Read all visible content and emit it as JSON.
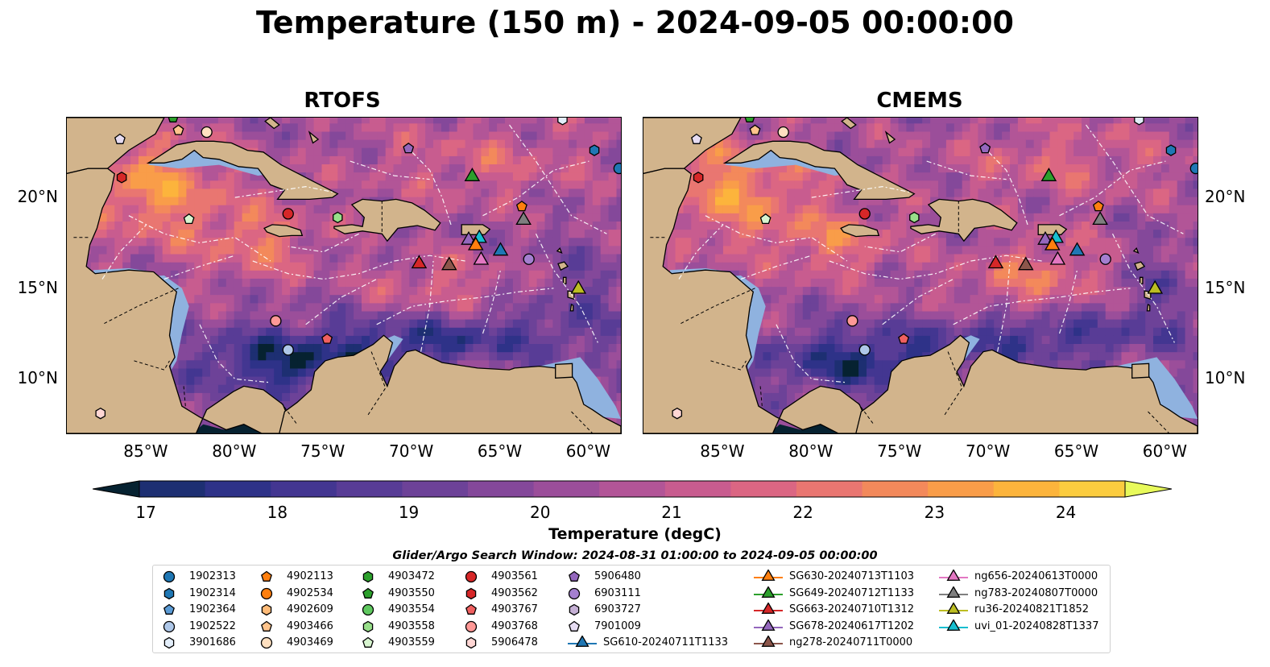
{
  "title": "Temperature (150 m) - 2024-09-05 00:00:00",
  "panels": [
    {
      "title": "RTOFS",
      "variant": 0
    },
    {
      "title": "CMEMS",
      "variant": 1
    }
  ],
  "lat_labels": [
    "20°N",
    "15°N",
    "10°N"
  ],
  "lat_values": [
    20,
    15,
    10
  ],
  "lon_labels": [
    "85°W",
    "80°W",
    "75°W",
    "70°W",
    "65°W",
    "60°W"
  ],
  "lon_values": [
    -85,
    -80,
    -75,
    -70,
    -65,
    -60
  ],
  "map_extent": {
    "lon": [
      -89.5,
      -58.2
    ],
    "lat": [
      7.0,
      24.4
    ]
  },
  "colorbar": {
    "label": "Temperature (degC)",
    "ticks": [
      "17",
      "18",
      "19",
      "20",
      "21",
      "22",
      "23",
      "24"
    ],
    "range": [
      16.9,
      24.55
    ],
    "colors": [
      "#062231",
      "#0e2b52",
      "#1d2f72",
      "#2e3288",
      "#433691",
      "#583c96",
      "#6d4298",
      "#84489a",
      "#9b4e9a",
      "#b25597",
      "#c85c8f",
      "#db6683",
      "#e97671",
      "#f3895b",
      "#f99d49",
      "#fcb43c",
      "#fbcc3f",
      "#f4e251",
      "#e8fa5b"
    ],
    "bounds": [
      17.5,
      18.0,
      18.5,
      19.0,
      19.5,
      20.0,
      20.5,
      21.0,
      21.5,
      22.0,
      22.5,
      23.0,
      23.5,
      24.0,
      24.5
    ],
    "extend": "both"
  },
  "search_window": "Glider/Argo Search Window: 2024-08-31 01:00:00 to 2024-09-05 00:00:00",
  "land_color": "#d2b48c",
  "shelf_color": "#8fb2df",
  "argo": [
    {
      "id": "1902313",
      "marker": "circle",
      "color": "#1f77b4"
    },
    {
      "id": "1902314",
      "marker": "hexagon",
      "color": "#1f77b4"
    },
    {
      "id": "1902364",
      "marker": "pentagon",
      "color": "#5b9bd5"
    },
    {
      "id": "1902522",
      "marker": "circle",
      "color": "#aec7e8"
    },
    {
      "id": "3901686",
      "marker": "hexagon",
      "color": "#e3eefa"
    },
    {
      "id": "4902113",
      "marker": "pentagon",
      "color": "#ff7f0e"
    },
    {
      "id": "4902534",
      "marker": "circle",
      "color": "#ff7f0e"
    },
    {
      "id": "4902609",
      "marker": "hexagon",
      "color": "#ffbb78"
    },
    {
      "id": "4903466",
      "marker": "pentagon",
      "color": "#ffc48c"
    },
    {
      "id": "4903469",
      "marker": "circle",
      "color": "#ffe0c0"
    },
    {
      "id": "4903472",
      "marker": "hexagon",
      "color": "#2ca02c"
    },
    {
      "id": "4903550",
      "marker": "pentagon",
      "color": "#2ca02c"
    },
    {
      "id": "4903554",
      "marker": "circle",
      "color": "#5fc85f"
    },
    {
      "id": "4903558",
      "marker": "hexagon",
      "color": "#98df8a"
    },
    {
      "id": "4903559",
      "marker": "pentagon",
      "color": "#d8f5d0"
    },
    {
      "id": "4903561",
      "marker": "circle",
      "color": "#d62728"
    },
    {
      "id": "4903562",
      "marker": "hexagon",
      "color": "#d62728"
    },
    {
      "id": "4903767",
      "marker": "pentagon",
      "color": "#f06060"
    },
    {
      "id": "4903768",
      "marker": "circle",
      "color": "#ff9896"
    },
    {
      "id": "5906478",
      "marker": "hexagon",
      "color": "#ffd6d4"
    },
    {
      "id": "5906480",
      "marker": "pentagon",
      "color": "#9467bd"
    },
    {
      "id": "6903111",
      "marker": "circle",
      "color": "#a47fd0"
    },
    {
      "id": "6903727",
      "marker": "hexagon",
      "color": "#c5b0d5"
    },
    {
      "id": "7901009",
      "marker": "pentagon",
      "color": "#e6dcf2"
    }
  ],
  "gliders": [
    {
      "id": "SG610-20240711T1133",
      "color": "#1f77b4"
    },
    {
      "id": "SG630-20240713T1103",
      "color": "#ff7f0e"
    },
    {
      "id": "SG649-20240712T1133",
      "color": "#2ca02c"
    },
    {
      "id": "SG663-20240710T1312",
      "color": "#d62728"
    },
    {
      "id": "SG678-20240617T1202",
      "color": "#9467bd"
    },
    {
      "id": "ng278-20240711T0000",
      "color": "#8c564b"
    },
    {
      "id": "ng656-20240613T0000",
      "color": "#e377c2"
    },
    {
      "id": "ng783-20240807T0000",
      "color": "#7f7f7f"
    },
    {
      "id": "ru36-20240821T1852",
      "color": "#bcbd22"
    },
    {
      "id": "uvi_01-20240828T1337",
      "color": "#17becf"
    }
  ],
  "argo_positions": [
    {
      "id": "1902522",
      "lon": -77.0,
      "lat": 11.6
    },
    {
      "id": "3901686",
      "lon": -61.5,
      "lat": 24.3
    },
    {
      "id": "1902314",
      "lon": -59.7,
      "lat": 22.6
    },
    {
      "id": "1902313",
      "lon": -58.3,
      "lat": 21.6
    },
    {
      "id": "4902113",
      "lon": -63.8,
      "lat": 19.5
    },
    {
      "id": "4903466",
      "lon": -83.2,
      "lat": 23.7
    },
    {
      "id": "4903469",
      "lon": -81.6,
      "lat": 23.6
    },
    {
      "id": "4903550",
      "lon": -83.5,
      "lat": 24.4
    },
    {
      "id": "4903558",
      "lon": -74.2,
      "lat": 18.9
    },
    {
      "id": "4903559",
      "lon": -82.6,
      "lat": 18.8
    },
    {
      "id": "4903561",
      "lon": -77.0,
      "lat": 19.1
    },
    {
      "id": "4903562",
      "lon": -86.4,
      "lat": 21.1
    },
    {
      "id": "4903767",
      "lon": -74.8,
      "lat": 12.2
    },
    {
      "id": "4903768",
      "lon": -77.7,
      "lat": 13.2
    },
    {
      "id": "5906478",
      "lon": -87.6,
      "lat": 8.1
    },
    {
      "id": "5906480",
      "lon": -70.2,
      "lat": 22.7
    },
    {
      "id": "6903111",
      "lon": -63.4,
      "lat": 16.6
    },
    {
      "id": "7901009",
      "lon": -86.5,
      "lat": 23.2
    }
  ],
  "glider_positions": [
    {
      "id": "SG649-20240712T1133",
      "lon": -66.6,
      "lat": 21.1
    },
    {
      "id": "SG663-20240710T1312",
      "lon": -69.6,
      "lat": 16.3
    },
    {
      "id": "ng278-20240711T0000",
      "lon": -67.9,
      "lat": 16.2
    },
    {
      "id": "SG678-20240617T1202",
      "lon": -66.8,
      "lat": 17.6
    },
    {
      "id": "uvi_01-20240828T1337",
      "lon": -66.2,
      "lat": 17.7
    },
    {
      "id": "SG630-20240713T1103",
      "lon": -66.4,
      "lat": 17.3
    },
    {
      "id": "ng656-20240613T0000",
      "lon": -66.1,
      "lat": 16.5
    },
    {
      "id": "SG610-20240711T1133",
      "lon": -65.0,
      "lat": 17.0
    },
    {
      "id": "ng783-20240807T0000",
      "lon": -63.7,
      "lat": 18.7
    },
    {
      "id": "ru36-20240821T1852",
      "lon": -60.6,
      "lat": 14.9
    }
  ]
}
